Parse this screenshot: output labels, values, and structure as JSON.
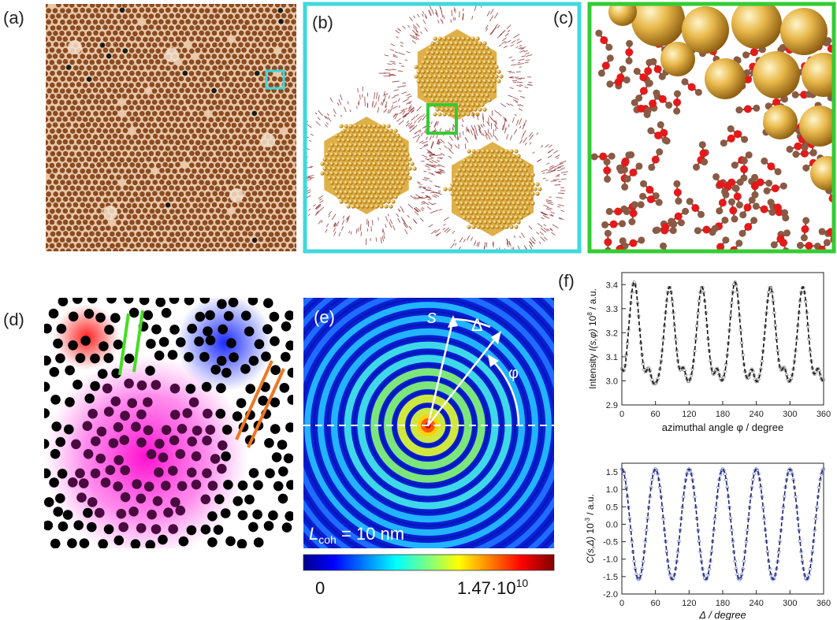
{
  "panels": {
    "a": {
      "label": "(a)"
    },
    "b": {
      "label": "(b)"
    },
    "c": {
      "label": "(c)"
    },
    "d": {
      "label": "(d)"
    },
    "e": {
      "label": "(e)",
      "s_label": "s",
      "delta_label": "Δ",
      "phi_label": "φ",
      "lcoh_prefix": "L",
      "lcoh_sub": "coh",
      "lcoh_value": " = 10 nm",
      "colorbar_min": "0",
      "colorbar_max_base": "1.47·10",
      "colorbar_max_exp": "10"
    },
    "f": {
      "label": "(f)"
    }
  },
  "colors": {
    "cyan_frame": "#3fd9dc",
    "green_frame": "#33cc33",
    "gold": "#e8b84a",
    "ligand": "#8b2a2a",
    "top_fit": "#111111",
    "top_data": "#888888",
    "bottom_fit": "#222266",
    "bottom_data": "#6f7fd0"
  },
  "chart_data": [
    {
      "type": "line",
      "title": "",
      "xlabel": "azimuthal angle φ / degree",
      "ylabel_main": "Intensity ",
      "ylabel_italic": "I(s,φ)",
      "ylabel_exp_base": " 10",
      "ylabel_exp": "8",
      "ylabel_unit": " / a.u.",
      "xlim": [
        0,
        360
      ],
      "ylim": [
        2.9,
        3.45
      ],
      "xticks": [
        "0",
        "60",
        "120",
        "180",
        "240",
        "300",
        "360"
      ],
      "yticks": [
        "2.9",
        "3.0",
        "3.1",
        "3.2",
        "3.3",
        "3.4"
      ],
      "peak_positions": [
        22,
        85,
        143,
        202,
        265,
        323
      ],
      "peak_values": [
        3.41,
        3.39,
        3.39,
        3.41,
        3.39,
        3.39
      ],
      "shoulder_positions": [
        48,
        110,
        170,
        232,
        290,
        350
      ],
      "shoulder_value": 3.1,
      "minimum_value": 2.98,
      "start_value": 3.05,
      "series": [
        {
          "role": "data",
          "marker": "open-circle"
        },
        {
          "role": "fit",
          "style": "dashed"
        }
      ]
    },
    {
      "type": "line",
      "title": "",
      "xlabel": "Δ / degree",
      "ylabel_italic": "C(s,Δ)",
      "ylabel_exp_base": " 10",
      "ylabel_exp": "-3",
      "ylabel_unit": " / a.u.",
      "xlim": [
        0,
        360
      ],
      "ylim": [
        -2.0,
        1.75
      ],
      "xticks": [
        "0",
        "60",
        "120",
        "180",
        "240",
        "300",
        "360"
      ],
      "yticks": [
        "-2.0",
        "-1.5",
        "-1.0",
        "-0.5",
        "0.0",
        "0.5",
        "1.0",
        "1.5"
      ],
      "amplitude": 1.58,
      "period_deg": 60,
      "series": [
        {
          "role": "data",
          "marker": "open-circle"
        },
        {
          "role": "fit",
          "style": "dashed"
        }
      ]
    }
  ]
}
